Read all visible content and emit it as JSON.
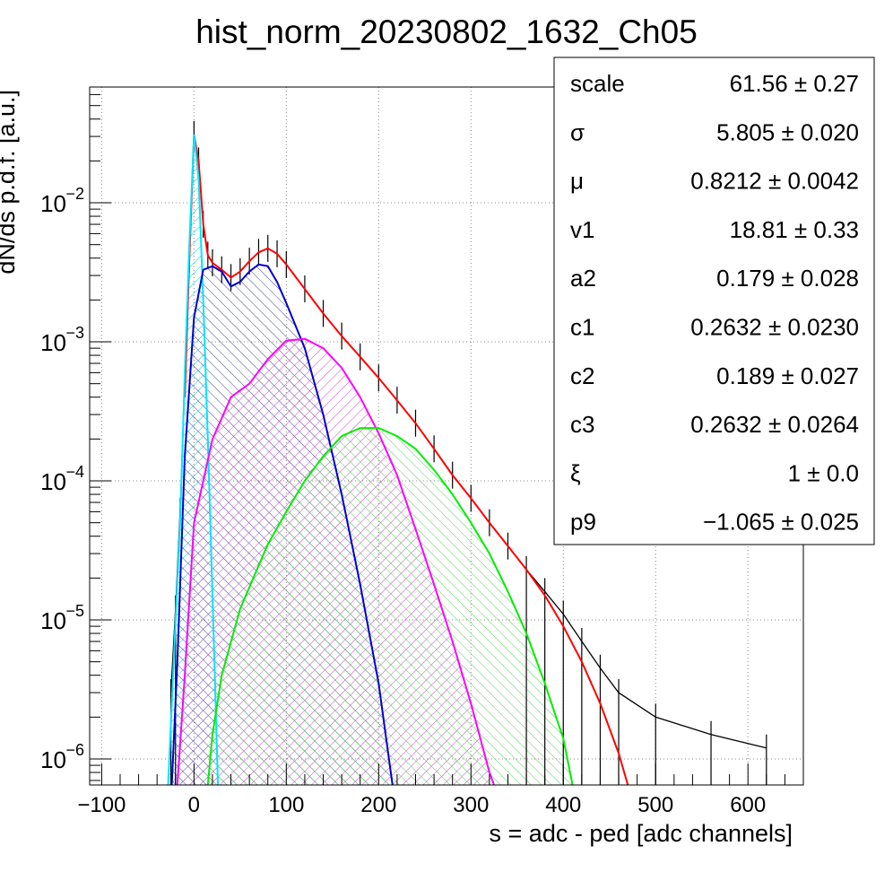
{
  "chart_data": {
    "type": "histogram",
    "title": "hist_norm_20230802_1632_Ch05",
    "xlabel": "s = adc - ped [adc channels]",
    "ylabel": "dN/ds p.d.f. [a.u.]",
    "xlim": [
      -113,
      660
    ],
    "ylim": [
      6.5e-07,
      0.068
    ],
    "yscale": "log",
    "grid": true,
    "x_ticks": [
      {
        "value": -100,
        "label": "−100"
      },
      {
        "value": 0,
        "label": "0"
      },
      {
        "value": 100,
        "label": "100"
      },
      {
        "value": 200,
        "label": "200"
      },
      {
        "value": 300,
        "label": "300"
      },
      {
        "value": 400,
        "label": "400"
      },
      {
        "value": 500,
        "label": "500"
      },
      {
        "value": 600,
        "label": "600"
      }
    ],
    "y_ticks": [
      {
        "value": 0.01,
        "base": "10",
        "exp": "−2"
      },
      {
        "value": 0.001,
        "base": "10",
        "exp": "−3"
      },
      {
        "value": 0.0001,
        "base": "10",
        "exp": "−4"
      },
      {
        "value": 1e-05,
        "base": "10",
        "exp": "−5"
      },
      {
        "value": 1e-06,
        "base": "10",
        "exp": "−6"
      }
    ],
    "series": [
      {
        "role": "data histogram",
        "color": "#000000",
        "points": [
          [
            -25,
            3e-06
          ],
          [
            -20,
            1.2e-05
          ],
          [
            -15,
            6e-05
          ],
          [
            -10,
            0.0005
          ],
          [
            -5,
            0.004
          ],
          [
            0,
            0.031
          ],
          [
            5,
            0.02
          ],
          [
            10,
            0.007
          ],
          [
            15,
            0.0042
          ],
          [
            20,
            0.0037
          ],
          [
            30,
            0.0033
          ],
          [
            40,
            0.0029
          ],
          [
            50,
            0.0032
          ],
          [
            60,
            0.0038
          ],
          [
            70,
            0.0044
          ],
          [
            80,
            0.0047
          ],
          [
            90,
            0.0043
          ],
          [
            100,
            0.0036
          ],
          [
            120,
            0.0024
          ],
          [
            140,
            0.0016
          ],
          [
            160,
            0.0011
          ],
          [
            180,
            0.00078
          ],
          [
            200,
            0.00055
          ],
          [
            220,
            0.00038
          ],
          [
            240,
            0.00026
          ],
          [
            260,
            0.00017
          ],
          [
            280,
            0.00011
          ],
          [
            300,
            7.5e-05
          ],
          [
            320,
            5e-05
          ],
          [
            340,
            3.4e-05
          ],
          [
            360,
            2.3e-05
          ],
          [
            380,
            1.6e-05
          ],
          [
            400,
            1.1e-05
          ],
          [
            420,
            7e-06
          ],
          [
            440,
            4.5e-06
          ],
          [
            460,
            3e-06
          ],
          [
            500,
            2e-06
          ],
          [
            560,
            1.5e-06
          ],
          [
            620,
            1.2e-06
          ]
        ]
      },
      {
        "role": "total fit",
        "color": "#ff0000",
        "points": [
          [
            -10,
            0.0004
          ],
          [
            -5,
            0.004
          ],
          [
            0,
            0.031
          ],
          [
            5,
            0.02
          ],
          [
            10,
            0.007
          ],
          [
            15,
            0.0042
          ],
          [
            20,
            0.0037
          ],
          [
            30,
            0.0033
          ],
          [
            40,
            0.0029
          ],
          [
            50,
            0.0032
          ],
          [
            60,
            0.0038
          ],
          [
            70,
            0.0044
          ],
          [
            80,
            0.0047
          ],
          [
            90,
            0.0043
          ],
          [
            100,
            0.0036
          ],
          [
            120,
            0.0024
          ],
          [
            140,
            0.0016
          ],
          [
            160,
            0.0011
          ],
          [
            180,
            0.00078
          ],
          [
            200,
            0.00055
          ],
          [
            220,
            0.00038
          ],
          [
            240,
            0.00026
          ],
          [
            260,
            0.00017
          ],
          [
            280,
            0.00011
          ],
          [
            300,
            7.5e-05
          ],
          [
            320,
            5e-05
          ],
          [
            340,
            3.4e-05
          ],
          [
            360,
            2.3e-05
          ],
          [
            380,
            1.5e-05
          ],
          [
            400,
            9e-06
          ],
          [
            420,
            5e-06
          ],
          [
            440,
            2.5e-06
          ],
          [
            460,
            1.1e-06
          ],
          [
            470,
            6.5e-07
          ]
        ]
      },
      {
        "role": "pedestal component",
        "color": "#00e5ff",
        "hatch": "#00c8e0",
        "points": [
          [
            -28,
            6.5e-07
          ],
          [
            -22,
            5e-06
          ],
          [
            -15,
            5e-05
          ],
          [
            -10,
            0.0006
          ],
          [
            -5,
            0.005
          ],
          [
            0,
            0.031
          ],
          [
            5,
            0.015
          ],
          [
            10,
            0.002
          ],
          [
            15,
            0.0002
          ],
          [
            20,
            1.5e-05
          ],
          [
            26,
            6.5e-07
          ]
        ]
      },
      {
        "role": "1 photo-electron component",
        "color": "#0000cc",
        "hatch": "#444488",
        "points": [
          [
            -24,
            6.5e-07
          ],
          [
            -18,
            5e-06
          ],
          [
            -10,
            0.00015
          ],
          [
            0,
            0.0015
          ],
          [
            10,
            0.0033
          ],
          [
            20,
            0.0035
          ],
          [
            30,
            0.0032
          ],
          [
            40,
            0.0025
          ],
          [
            50,
            0.0027
          ],
          [
            60,
            0.0032
          ],
          [
            70,
            0.0036
          ],
          [
            80,
            0.0035
          ],
          [
            90,
            0.0027
          ],
          [
            100,
            0.0019
          ],
          [
            120,
            0.0009
          ],
          [
            140,
            0.0003
          ],
          [
            160,
            8e-05
          ],
          [
            180,
            1.8e-05
          ],
          [
            200,
            3.5e-06
          ],
          [
            215,
            6.5e-07
          ]
        ]
      },
      {
        "role": "2 photo-electron component",
        "color": "#ff00ff",
        "hatch": "#cc44cc",
        "points": [
          [
            -18,
            6.5e-07
          ],
          [
            -10,
            4e-06
          ],
          [
            0,
            5e-05
          ],
          [
            20,
            0.0002
          ],
          [
            40,
            0.0004
          ],
          [
            60,
            0.0005
          ],
          [
            80,
            0.00075
          ],
          [
            100,
            0.00102
          ],
          [
            120,
            0.00105
          ],
          [
            140,
            0.0009
          ],
          [
            160,
            0.00065
          ],
          [
            180,
            0.0004
          ],
          [
            200,
            0.00022
          ],
          [
            220,
            0.00011
          ],
          [
            240,
            4.5e-05
          ],
          [
            260,
            1.8e-05
          ],
          [
            280,
            7e-06
          ],
          [
            300,
            2.5e-06
          ],
          [
            320,
            8e-07
          ],
          [
            325,
            6.5e-07
          ]
        ]
      },
      {
        "role": "3 photo-electron component",
        "color": "#00ee00",
        "hatch": "#55cc55",
        "points": [
          [
            15,
            6.5e-07
          ],
          [
            20,
            1.5e-06
          ],
          [
            30,
            4e-06
          ],
          [
            50,
            1.2e-05
          ],
          [
            80,
            3.5e-05
          ],
          [
            100,
            6e-05
          ],
          [
            120,
            0.0001
          ],
          [
            140,
            0.00015
          ],
          [
            160,
            0.00021
          ],
          [
            180,
            0.00024
          ],
          [
            200,
            0.00024
          ],
          [
            220,
            0.00021
          ],
          [
            240,
            0.00017
          ],
          [
            260,
            0.00012
          ],
          [
            280,
            8e-05
          ],
          [
            300,
            5e-05
          ],
          [
            320,
            3e-05
          ],
          [
            340,
            1.6e-05
          ],
          [
            360,
            8e-06
          ],
          [
            380,
            3.5e-06
          ],
          [
            400,
            1.4e-06
          ],
          [
            410,
            6.5e-07
          ]
        ]
      }
    ],
    "stats_box": [
      {
        "name": "scale",
        "value": "61.56 ± 0.27"
      },
      {
        "name": "σ",
        "value": "5.805 ± 0.020"
      },
      {
        "name": "μ",
        "value": "0.8212 ± 0.0042"
      },
      {
        "name": "v1",
        "value": "18.81 ± 0.33"
      },
      {
        "name": "a2",
        "value": "0.179 ± 0.028"
      },
      {
        "name": "c1",
        "value": "0.2632 ± 0.0230"
      },
      {
        "name": "c2",
        "value": "0.189 ± 0.027"
      },
      {
        "name": "c3",
        "value": "0.2632 ± 0.0264"
      },
      {
        "name": "ξ",
        "value": "1 ± 0.0"
      },
      {
        "name": "p9",
        "value": "−1.065 ± 0.025"
      }
    ]
  }
}
